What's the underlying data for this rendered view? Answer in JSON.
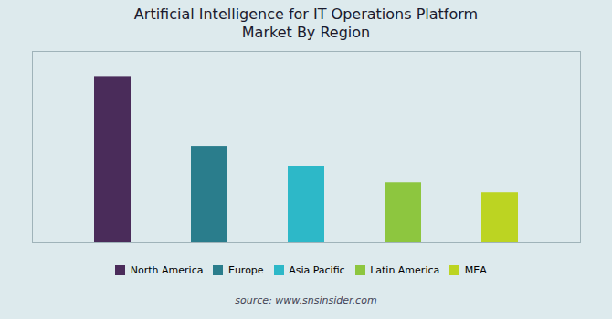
{
  "chart_data": {
    "type": "bar",
    "title": "Artificial Intelligence for IT Operations Platform\nMarket By Region",
    "categories": [
      "North America",
      "Europe",
      "Asia Pacific",
      "Latin America",
      "MEA"
    ],
    "values": [
      100,
      58,
      46,
      36,
      30
    ],
    "colors": [
      "#4a2c5a",
      "#2a7d8c",
      "#2db8c8",
      "#8dc63f",
      "#bcd422"
    ],
    "ylim": [
      0,
      115
    ],
    "yticks": [],
    "grid": false,
    "tick_labels": false,
    "legend": "bottom",
    "caption": "source: www.snsinsider.com"
  }
}
